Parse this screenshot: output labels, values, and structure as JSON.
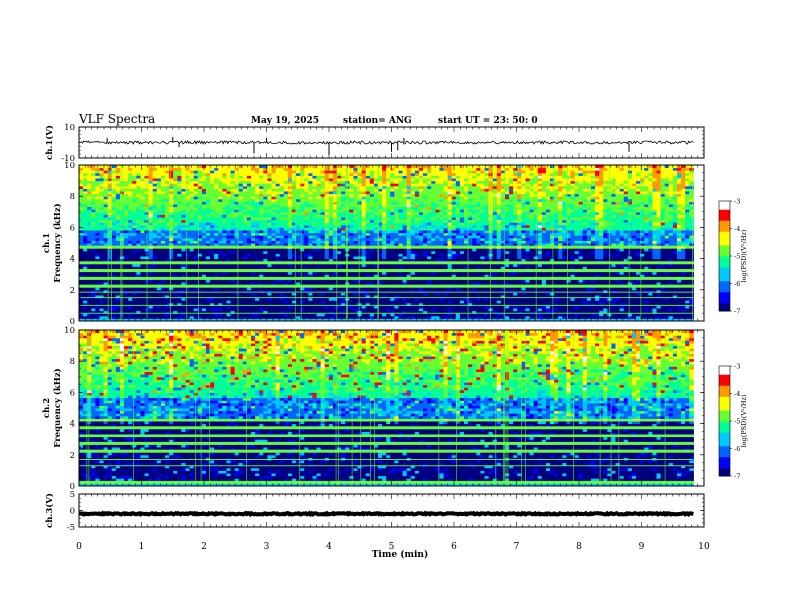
{
  "header": {
    "title": "VLF Spectra",
    "date": "May 19, 2025",
    "station": "station= ANG",
    "start": "start  UT  =   23: 50: 0"
  },
  "colors": {
    "colormap": [
      "#000080",
      "#0000ff",
      "#0066ff",
      "#00c8ff",
      "#00ff96",
      "#66ff33",
      "#ffff00",
      "#ff9900",
      "#ff0000",
      "#ffffff"
    ],
    "trace": "#000000"
  },
  "chart_data": [
    {
      "type": "line",
      "panel": "ch1-waveform",
      "ylabel": "ch.1(V)",
      "ylim": [
        -10,
        10
      ],
      "y_ticklabels": [
        "10",
        "-10"
      ],
      "baseline": 0,
      "amplitude": 1,
      "spikes": [
        {
          "x": 0.45,
          "y": 3
        },
        {
          "x": 1.5,
          "y": 3.5
        },
        {
          "x": 1.6,
          "y": -3
        },
        {
          "x": 2.8,
          "y": -7
        },
        {
          "x": 3.0,
          "y": 3
        },
        {
          "x": 4.0,
          "y": -8
        },
        {
          "x": 5.0,
          "y": -6
        },
        {
          "x": 5.1,
          "y": -5
        },
        {
          "x": 5.2,
          "y": 3
        },
        {
          "x": 8.8,
          "y": -6
        }
      ]
    },
    {
      "type": "heatmap",
      "panel": "ch1-spectrogram",
      "ylabel": "ch.1\nFrequency  (kHz)",
      "ylim": [
        0,
        10
      ],
      "y_ticklabels": [
        "0",
        "2",
        "4",
        "6",
        "8",
        "10"
      ],
      "colorbar": {
        "label": "log(PSD)(V²/Hz)",
        "range": [
          -7,
          -3
        ],
        "ticklabels": [
          "-3",
          "-4",
          "-5",
          "-6",
          "-7"
        ]
      },
      "bands_khz": [
        0.5,
        1.0,
        1.5,
        1.85,
        2.3,
        2.8,
        3.3,
        3.8,
        4.8
      ],
      "activity_onset_khz": 5.0,
      "red_prob": 0.04
    },
    {
      "type": "heatmap",
      "panel": "ch2-spectrogram",
      "ylabel": "ch.2\nFrequency  (kHz)",
      "ylim": [
        0,
        10
      ],
      "y_ticklabels": [
        "0",
        "2",
        "4",
        "6",
        "8",
        "10"
      ],
      "colorbar": {
        "label": "log(PSD)(V²/Hz)",
        "range": [
          -7,
          -3
        ],
        "ticklabels": [
          "-3",
          "-4",
          "-5",
          "-6",
          "-7"
        ]
      },
      "bands_khz": [
        0.3,
        1.3,
        1.7,
        2.3,
        2.8,
        3.2,
        3.8,
        4.2
      ],
      "activity_onset_khz": 4.8,
      "red_prob": 0.12
    },
    {
      "type": "line",
      "panel": "ch3-waveform",
      "ylabel": "ch.3(V)",
      "ylim": [
        -5,
        5
      ],
      "y_ticklabels": [
        "5",
        "0",
        "-5"
      ],
      "baseline": -1,
      "amplitude": 0.2,
      "spikes": []
    }
  ],
  "x_axis": {
    "label": "Time  (min)",
    "xlim": [
      0,
      10
    ],
    "data_end_min": 9.83,
    "ticklabels": [
      "0",
      "1",
      "2",
      "3",
      "4",
      "5",
      "6",
      "7",
      "8",
      "9",
      "10"
    ]
  }
}
